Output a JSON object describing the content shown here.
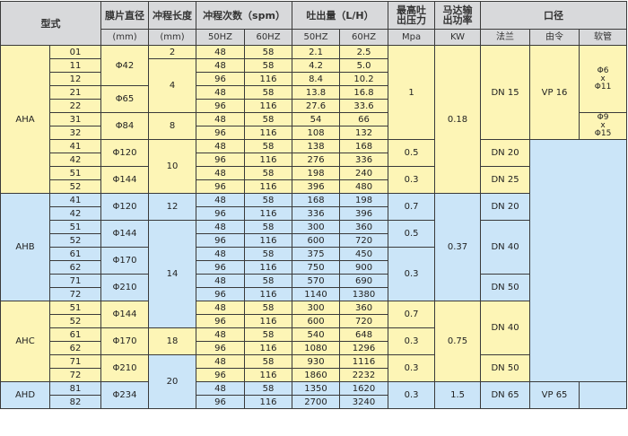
{
  "header": {
    "type": "型式",
    "diaphragm": "膜片直径",
    "stroke_len": "冲程长度",
    "spm": "冲程次数（spm）",
    "flow": "吐出量（L/H）",
    "max_pressure": "最高吐\n出压力",
    "motor_power": "马达输\n出功率",
    "port": "口径",
    "units": {
      "diaphragm": "(mm)",
      "stroke_len": "(mm)",
      "spm50": "50HZ",
      "spm60": "60HZ",
      "lh50": "50HZ",
      "lh60": "60HZ",
      "mpa": "Mpa",
      "kw": "KW",
      "flange": "法兰",
      "union": "由令",
      "hose": "软管"
    }
  },
  "colors": {
    "yellow": "#fdf5b6",
    "blue": "#cbe5f8",
    "header": "#d8d9db"
  },
  "body": {
    "rows": [
      {
        "type": "AHA",
        "model": "01",
        "dia": "Φ42",
        "stroke": "2",
        "spm50": "48",
        "spm60": "58",
        "lh50": "2.1",
        "lh60": "2.5",
        "mpa": "1",
        "kw": "0.18",
        "flange": "DN 15",
        "union": "VP 16",
        "hose": "Φ6\nx\nΦ11"
      },
      {
        "model": "11",
        "stroke": "4",
        "spm50": "48",
        "spm60": "58",
        "lh50": "4.2",
        "lh60": "5.0"
      },
      {
        "model": "12",
        "spm50": "96",
        "spm60": "116",
        "lh50": "8.4",
        "lh60": "10.2"
      },
      {
        "model": "21",
        "dia": "Φ65",
        "spm50": "48",
        "spm60": "58",
        "lh50": "13.8",
        "lh60": "16.8"
      },
      {
        "model": "22",
        "spm50": "96",
        "spm60": "116",
        "lh50": "27.6",
        "lh60": "33.6"
      },
      {
        "model": "31",
        "dia": "Φ84",
        "stroke": "8",
        "spm50": "48",
        "spm60": "58",
        "lh50": "54",
        "lh60": "66",
        "hose": "Φ9\nx\nΦ15"
      },
      {
        "model": "32",
        "spm50": "96",
        "spm60": "116",
        "lh50": "108",
        "lh60": "132"
      },
      {
        "model": "41",
        "dia": "Φ120",
        "stroke": "10",
        "spm50": "48",
        "spm60": "58",
        "lh50": "138",
        "lh60": "168",
        "mpa": "0.5",
        "flange": "DN 20"
      },
      {
        "model": "42",
        "spm50": "96",
        "spm60": "116",
        "lh50": "276",
        "lh60": "336"
      },
      {
        "model": "51",
        "dia": "Φ144",
        "spm50": "48",
        "spm60": "58",
        "lh50": "198",
        "lh60": "240",
        "mpa": "0.3",
        "flange": "DN 25"
      },
      {
        "model": "52",
        "spm50": "96",
        "spm60": "116",
        "lh50": "396",
        "lh60": "480"
      },
      {
        "type": "AHB",
        "model": "41",
        "dia": "Φ120",
        "stroke": "12",
        "spm50": "48",
        "spm60": "58",
        "lh50": "168",
        "lh60": "198",
        "mpa": "0.7",
        "kw": "0.37",
        "flange": "DN 20"
      },
      {
        "model": "42",
        "spm50": "96",
        "spm60": "116",
        "lh50": "336",
        "lh60": "396"
      },
      {
        "model": "51",
        "dia": "Φ144",
        "stroke": "14",
        "spm50": "48",
        "spm60": "58",
        "lh50": "300",
        "lh60": "360",
        "mpa": "0.5",
        "flange": "DN 40"
      },
      {
        "model": "52",
        "spm50": "96",
        "spm60": "116",
        "lh50": "600",
        "lh60": "720"
      },
      {
        "model": "61",
        "dia": "Φ170",
        "spm50": "48",
        "spm60": "58",
        "lh50": "375",
        "lh60": "450",
        "mpa": "0.3"
      },
      {
        "model": "62",
        "spm50": "96",
        "spm60": "116",
        "lh50": "750",
        "lh60": "900"
      },
      {
        "model": "71",
        "dia": "Φ210",
        "spm50": "48",
        "spm60": "58",
        "lh50": "570",
        "lh60": "690",
        "flange": "DN 50"
      },
      {
        "model": "72",
        "spm50": "96",
        "spm60": "116",
        "lh50": "1140",
        "lh60": "1380"
      },
      {
        "type": "AHC",
        "model": "51",
        "dia": "Φ144",
        "spm50": "48",
        "spm60": "58",
        "lh50": "300",
        "lh60": "360",
        "mpa": "0.7",
        "kw": "0.75",
        "flange": "DN 40"
      },
      {
        "model": "52",
        "spm50": "96",
        "spm60": "116",
        "lh50": "600",
        "lh60": "720"
      },
      {
        "model": "61",
        "dia": "Φ170",
        "stroke": "18",
        "spm50": "48",
        "spm60": "58",
        "lh50": "540",
        "lh60": "648",
        "mpa": "0.3"
      },
      {
        "model": "62",
        "spm50": "96",
        "spm60": "116",
        "lh50": "1080",
        "lh60": "1296"
      },
      {
        "model": "71",
        "dia": "Φ210",
        "stroke": "20",
        "spm50": "48",
        "spm60": "58",
        "lh50": "930",
        "lh60": "1116",
        "mpa": "0.3",
        "flange": "DN 50"
      },
      {
        "model": "72",
        "spm50": "96",
        "spm60": "116",
        "lh50": "1860",
        "lh60": "2232"
      },
      {
        "type": "AHD",
        "model": "81",
        "dia": "Φ234",
        "spm50": "48",
        "spm60": "58",
        "lh50": "1350",
        "lh60": "1620",
        "mpa": "0.3",
        "kw": "1.5",
        "flange": "DN 65",
        "union": "VP 65"
      },
      {
        "model": "82",
        "spm50": "96",
        "spm60": "116",
        "lh50": "2700",
        "lh60": "3240"
      }
    ]
  }
}
